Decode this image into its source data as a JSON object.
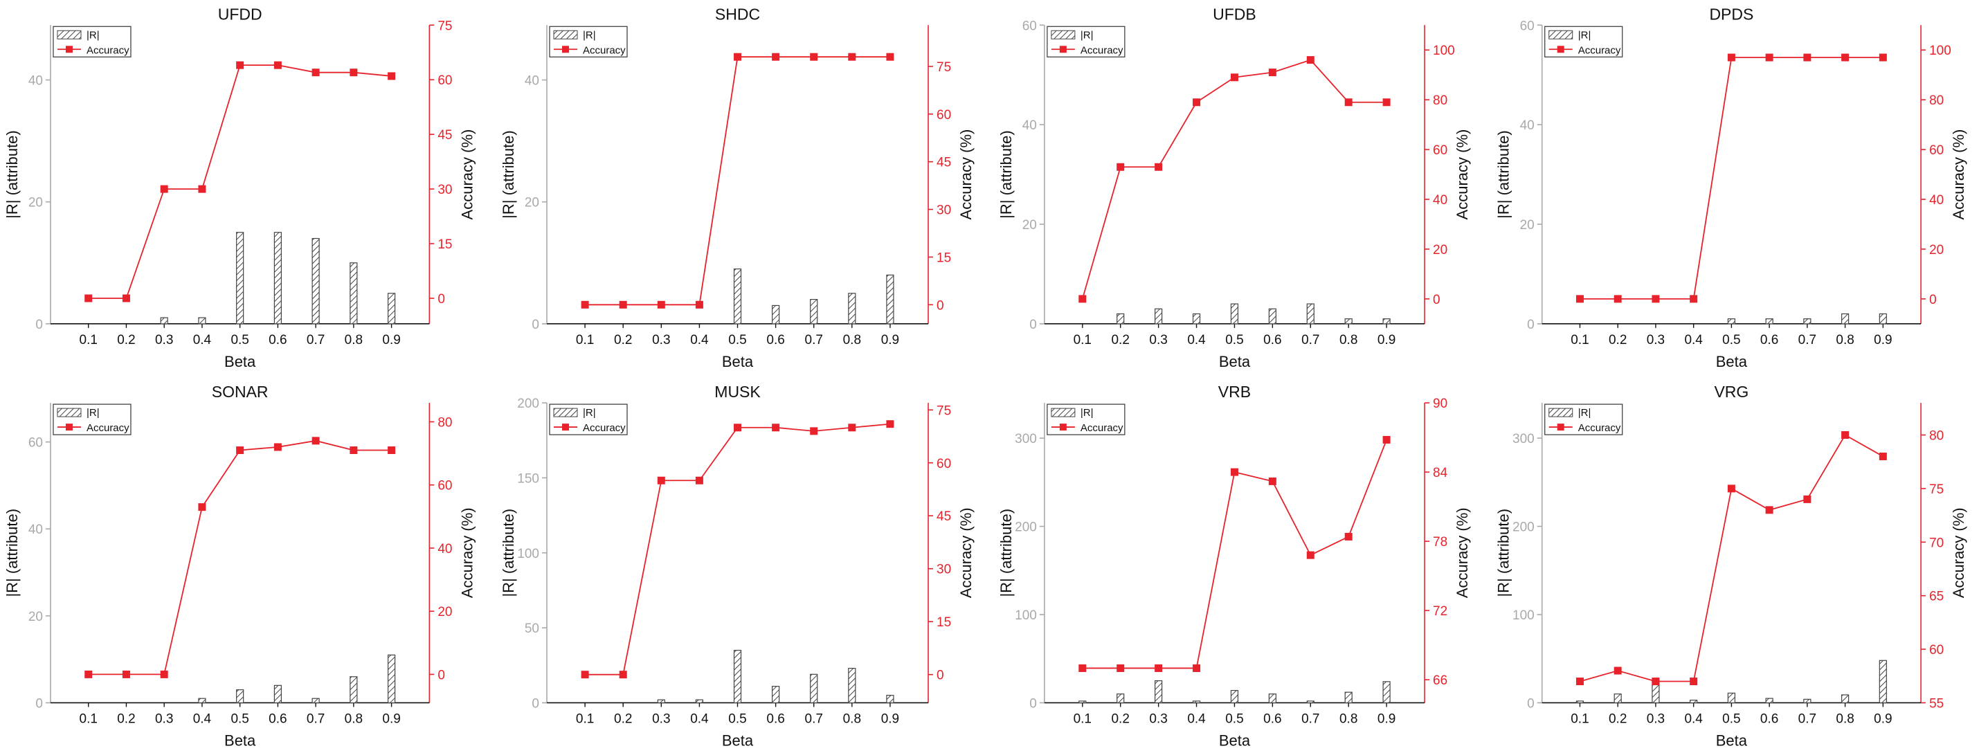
{
  "figure": {
    "x_label": "Beta",
    "left_axis_label": "|R| (attribute)",
    "right_axis_label": "Accuracy (%)",
    "legend_bar_label": "|R|",
    "legend_line_label": "Accuracy",
    "colors": {
      "accuracy": "#e8222b",
      "bars": "#444444",
      "left_axis": "#a9a9a9"
    }
  },
  "chart_data": [
    {
      "type": "bar+line",
      "title": "UFDD",
      "categories": [
        "0.1",
        "0.2",
        "0.3",
        "0.4",
        "0.5",
        "0.6",
        "0.7",
        "0.8",
        "0.9"
      ],
      "xlabel": "Beta",
      "ylabel": "|R| (attribute)",
      "y2label": "Accuracy (%)",
      "ylim": [
        0,
        49
      ],
      "yticks": [
        0,
        20,
        40
      ],
      "y2lim": [
        -7,
        75
      ],
      "y2ticks": [
        0,
        15,
        30,
        45,
        60,
        75
      ],
      "series": [
        {
          "name": "|R|",
          "kind": "bar",
          "axis": "left",
          "values": [
            0,
            0,
            1,
            1,
            15,
            15,
            14,
            10,
            5
          ]
        },
        {
          "name": "Accuracy",
          "kind": "line",
          "axis": "right",
          "values": [
            0,
            0,
            30,
            30,
            64,
            64,
            62,
            62,
            61
          ]
        }
      ],
      "legend": "top-left",
      "grid": false
    },
    {
      "type": "bar+line",
      "title": "SHDC",
      "categories": [
        "0.1",
        "0.2",
        "0.3",
        "0.4",
        "0.5",
        "0.6",
        "0.7",
        "0.8",
        "0.9"
      ],
      "xlabel": "Beta",
      "ylabel": "|R| (attribute)",
      "y2label": "Accuracy (%)",
      "ylim": [
        0,
        49
      ],
      "yticks": [
        0,
        20,
        40
      ],
      "y2lim": [
        -6,
        88
      ],
      "y2ticks": [
        0,
        15,
        30,
        45,
        60,
        75
      ],
      "series": [
        {
          "name": "|R|",
          "kind": "bar",
          "axis": "left",
          "values": [
            0,
            0,
            0,
            0,
            9,
            3,
            4,
            5,
            8
          ]
        },
        {
          "name": "Accuracy",
          "kind": "line",
          "axis": "right",
          "values": [
            0,
            0,
            0,
            0,
            78,
            78,
            78,
            78,
            78
          ]
        }
      ],
      "legend": "top-left",
      "grid": false
    },
    {
      "type": "bar+line",
      "title": "UFDB",
      "categories": [
        "0.1",
        "0.2",
        "0.3",
        "0.4",
        "0.5",
        "0.6",
        "0.7",
        "0.8",
        "0.9"
      ],
      "xlabel": "Beta",
      "ylabel": "|R| (attribute)",
      "y2label": "Accuracy (%)",
      "ylim": [
        0,
        60
      ],
      "yticks": [
        0,
        20,
        40,
        60
      ],
      "y2lim": [
        -10,
        110
      ],
      "y2ticks": [
        0,
        20,
        40,
        60,
        80,
        100
      ],
      "series": [
        {
          "name": "|R|",
          "kind": "bar",
          "axis": "left",
          "values": [
            0,
            2,
            3,
            2,
            4,
            3,
            4,
            1,
            1
          ]
        },
        {
          "name": "Accuracy",
          "kind": "line",
          "axis": "right",
          "values": [
            0,
            53,
            53,
            79,
            89,
            91,
            96,
            79,
            79
          ]
        }
      ],
      "legend": "top-left",
      "grid": false
    },
    {
      "type": "bar+line",
      "title": "DPDS",
      "categories": [
        "0.1",
        "0.2",
        "0.3",
        "0.4",
        "0.5",
        "0.6",
        "0.7",
        "0.8",
        "0.9"
      ],
      "xlabel": "Beta",
      "ylabel": "|R| (attribute)",
      "y2label": "Accuracy (%)",
      "ylim": [
        0,
        60
      ],
      "yticks": [
        0,
        20,
        40,
        60
      ],
      "y2lim": [
        -10,
        110
      ],
      "y2ticks": [
        0,
        20,
        40,
        60,
        80,
        100
      ],
      "series": [
        {
          "name": "|R|",
          "kind": "bar",
          "axis": "left",
          "values": [
            0,
            0,
            0,
            0,
            1,
            1,
            1,
            2,
            2
          ]
        },
        {
          "name": "Accuracy",
          "kind": "line",
          "axis": "right",
          "values": [
            0,
            0,
            0,
            0,
            97,
            97,
            97,
            97,
            97
          ]
        }
      ],
      "legend": "top-left",
      "grid": false
    },
    {
      "type": "bar+line",
      "title": "SONAR",
      "categories": [
        "0.1",
        "0.2",
        "0.3",
        "0.4",
        "0.5",
        "0.6",
        "0.7",
        "0.8",
        "0.9"
      ],
      "xlabel": "Beta",
      "ylabel": "|R| (attribute)",
      "y2label": "Accuracy (%)",
      "ylim": [
        0,
        69
      ],
      "yticks": [
        0,
        20,
        40,
        60
      ],
      "y2lim": [
        -9,
        86
      ],
      "y2ticks": [
        0,
        20,
        40,
        60,
        80
      ],
      "series": [
        {
          "name": "|R|",
          "kind": "bar",
          "axis": "left",
          "values": [
            0,
            0,
            0,
            1,
            3,
            4,
            1,
            6,
            11
          ]
        },
        {
          "name": "Accuracy",
          "kind": "line",
          "axis": "right",
          "values": [
            0,
            0,
            0,
            53,
            71,
            72,
            74,
            71,
            71
          ]
        }
      ],
      "legend": "top-left",
      "grid": false
    },
    {
      "type": "bar+line",
      "title": "MUSK",
      "categories": [
        "0.1",
        "0.2",
        "0.3",
        "0.4",
        "0.5",
        "0.6",
        "0.7",
        "0.8",
        "0.9"
      ],
      "xlabel": "Beta",
      "ylabel": "|R| (attribute)",
      "y2label": "Accuracy (%)",
      "ylim": [
        0,
        200
      ],
      "yticks": [
        0,
        50,
        100,
        150,
        200
      ],
      "y2lim": [
        -8,
        77
      ],
      "y2ticks": [
        0,
        15,
        30,
        45,
        60,
        75
      ],
      "series": [
        {
          "name": "|R|",
          "kind": "bar",
          "axis": "left",
          "values": [
            0,
            0,
            2,
            2,
            35,
            11,
            19,
            23,
            5
          ]
        },
        {
          "name": "Accuracy",
          "kind": "line",
          "axis": "right",
          "values": [
            0,
            0,
            55,
            55,
            70,
            70,
            69,
            70,
            71
          ]
        }
      ],
      "legend": "top-left",
      "grid": false
    },
    {
      "type": "bar+line",
      "title": "VRB",
      "categories": [
        "0.1",
        "0.2",
        "0.3",
        "0.4",
        "0.5",
        "0.6",
        "0.7",
        "0.8",
        "0.9"
      ],
      "xlabel": "Beta",
      "ylabel": "|R| (attribute)",
      "y2label": "Accuracy (%)",
      "ylim": [
        0,
        340
      ],
      "yticks": [
        0,
        100,
        200,
        300
      ],
      "y2lim": [
        64,
        90
      ],
      "y2ticks": [
        66,
        72,
        78,
        84,
        90
      ],
      "series": [
        {
          "name": "|R|",
          "kind": "bar",
          "axis": "left",
          "values": [
            2,
            10,
            25,
            2,
            14,
            10,
            2,
            12,
            24
          ]
        },
        {
          "name": "Accuracy",
          "kind": "line",
          "axis": "right",
          "values": [
            67,
            67,
            67,
            67,
            84,
            83.2,
            76.8,
            78.4,
            86.8
          ]
        }
      ],
      "legend": "top-left",
      "grid": false
    },
    {
      "type": "bar+line",
      "title": "VRG",
      "categories": [
        "0.1",
        "0.2",
        "0.3",
        "0.4",
        "0.5",
        "0.6",
        "0.7",
        "0.8",
        "0.9"
      ],
      "xlabel": "Beta",
      "ylabel": "|R| (attribute)",
      "y2label": "Accuracy (%)",
      "ylim": [
        0,
        340
      ],
      "yticks": [
        0,
        100,
        200,
        300
      ],
      "y2lim": [
        55,
        83
      ],
      "y2ticks": [
        55,
        60,
        65,
        70,
        75,
        80
      ],
      "series": [
        {
          "name": "|R|",
          "kind": "bar",
          "axis": "left",
          "values": [
            2,
            10,
            27,
            3,
            11,
            5,
            4,
            9,
            48
          ]
        },
        {
          "name": "Accuracy",
          "kind": "line",
          "axis": "right",
          "values": [
            57,
            58,
            57,
            57,
            75,
            73,
            74,
            80,
            78
          ]
        }
      ],
      "legend": "top-left",
      "grid": false
    }
  ]
}
